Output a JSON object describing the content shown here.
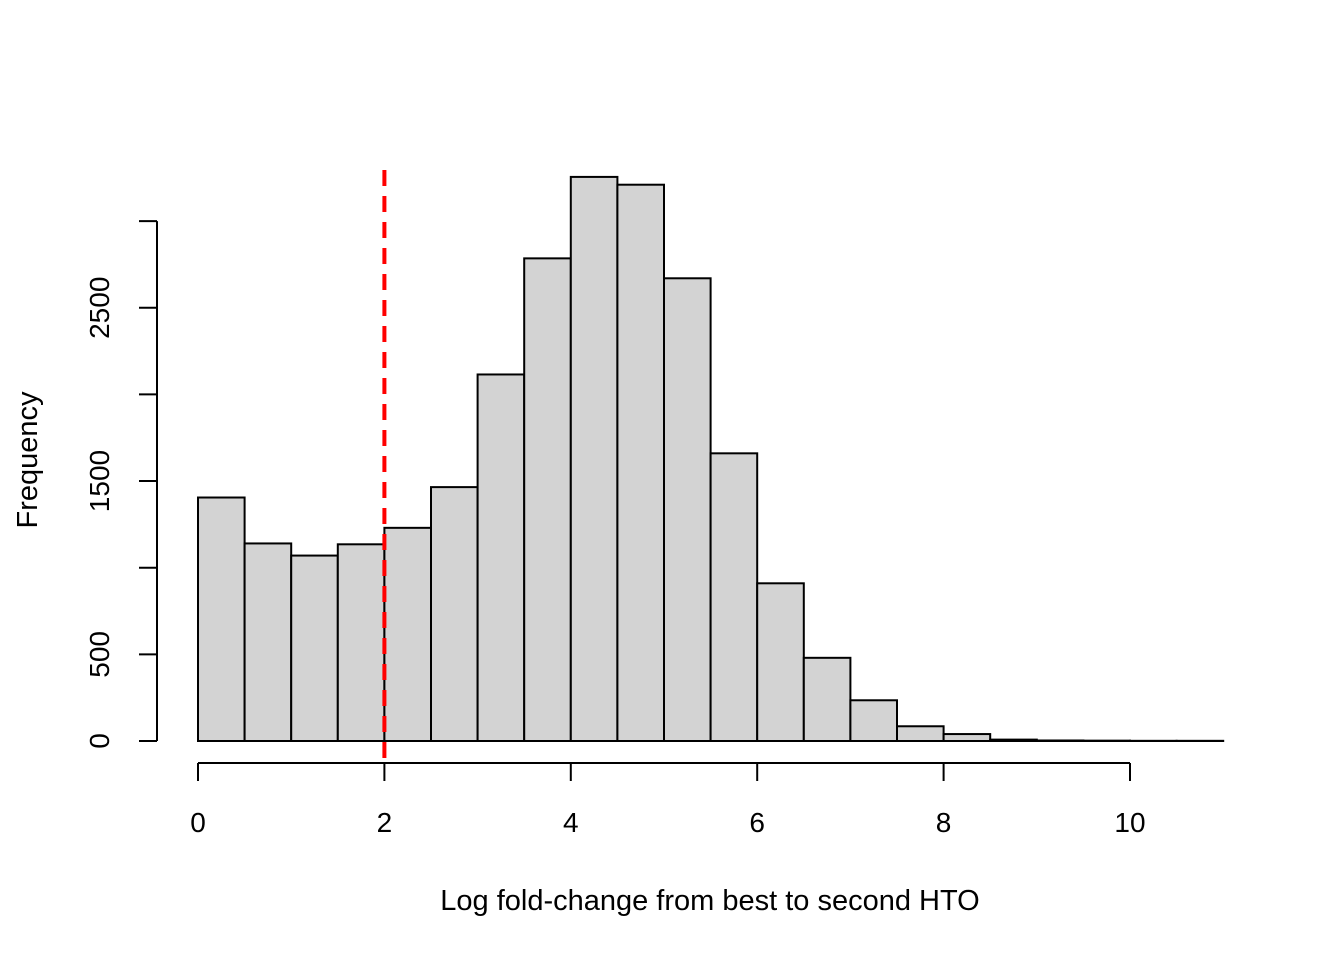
{
  "chart_data": {
    "type": "bar",
    "title": "",
    "xlabel": "Log fold-change from best to second HTO",
    "ylabel": "Frequency",
    "bin_edges": [
      0,
      0.5,
      1,
      1.5,
      2,
      2.5,
      3,
      3.5,
      4,
      4.5,
      5,
      5.5,
      6,
      6.5,
      7,
      7.5,
      8,
      8.5,
      9,
      9.5,
      10,
      10.5,
      11
    ],
    "values": [
      1405,
      1140,
      1070,
      1135,
      1230,
      1465,
      2115,
      2785,
      3255,
      3210,
      2670,
      1660,
      910,
      480,
      235,
      85,
      40,
      8,
      3,
      2,
      1,
      1
    ],
    "xlim": [
      0,
      11
    ],
    "ylim": [
      0,
      3000
    ],
    "x_ticks": [
      0,
      2,
      4,
      6,
      8,
      10
    ],
    "x_tick_labels": [
      "0",
      "2",
      "4",
      "6",
      "8",
      "10"
    ],
    "y_ticks": [
      0,
      500,
      1000,
      1500,
      2000,
      2500,
      3000
    ],
    "y_tick_labels": [
      "0",
      "500",
      "",
      "1500",
      "",
      "2500",
      ""
    ],
    "reference_line": {
      "x": 2,
      "color": "#ff0000",
      "style": "dashed"
    },
    "bar_fill": "#d3d3d3",
    "bar_stroke": "#000000",
    "grid": false
  }
}
